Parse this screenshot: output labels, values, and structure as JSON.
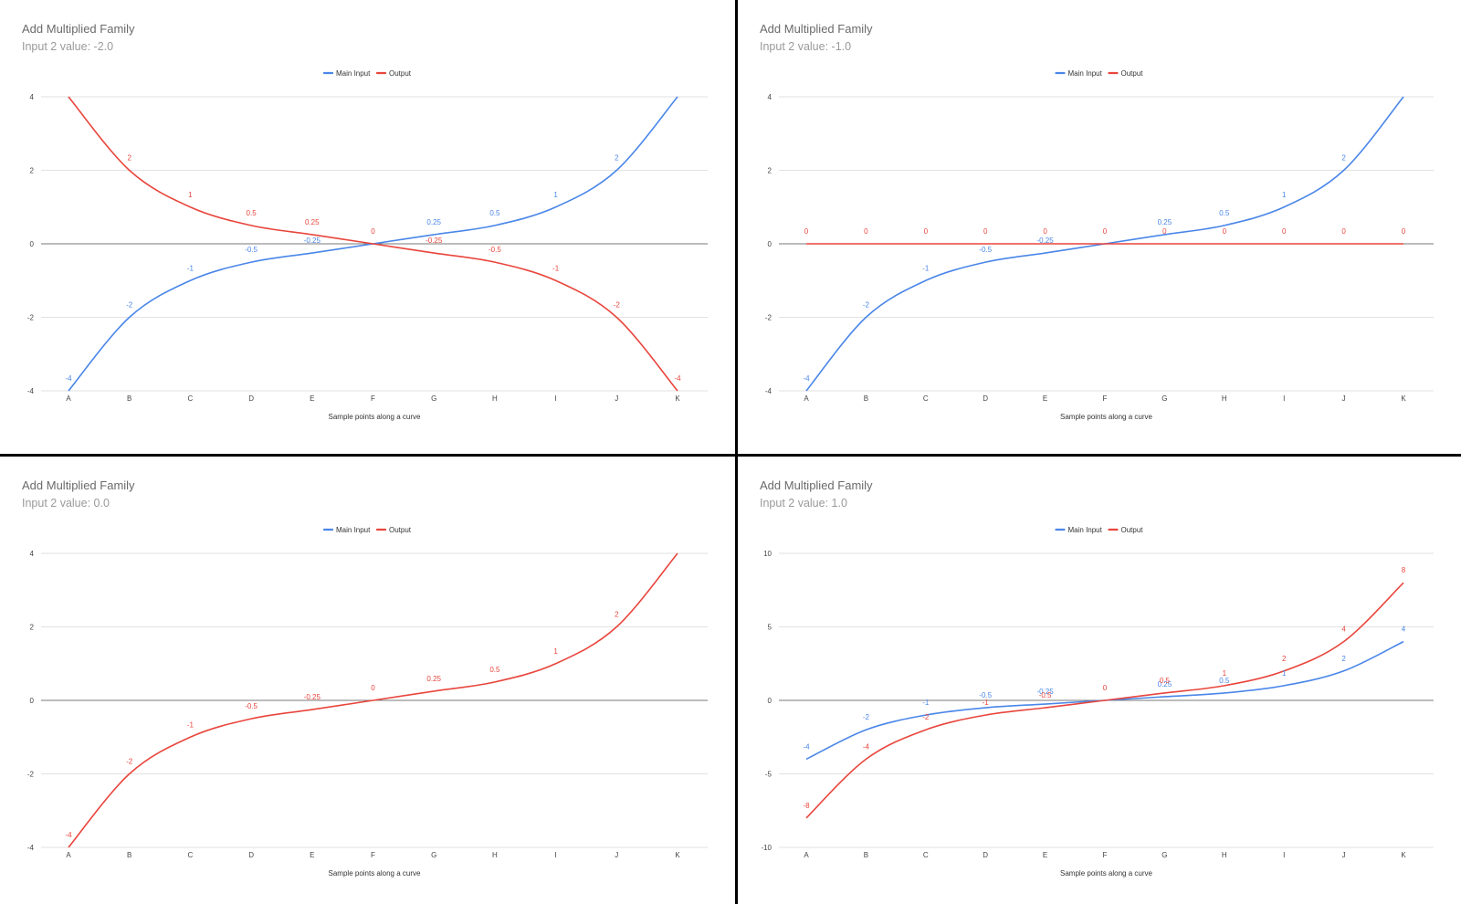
{
  "colors": {
    "main_input": "#4a86e8",
    "output": "#e8453c",
    "grid": "#e2e2e2",
    "axis": "#7a7a7a"
  },
  "chart_data": [
    {
      "type": "line",
      "title": "Add Multiplied Family",
      "subtitle": "Input 2 value: -2.0",
      "xlabel": "Sample points along a curve",
      "ylabel": "",
      "categories": [
        "A",
        "B",
        "C",
        "D",
        "E",
        "F",
        "G",
        "H",
        "I",
        "J",
        "K"
      ],
      "ylim": [
        -4,
        4
      ],
      "yticks": [
        4,
        2,
        0,
        -2,
        -4
      ],
      "legend": "top",
      "grid": true,
      "series": [
        {
          "name": "Main Input",
          "values": [
            -4,
            -2,
            -1,
            -0.5,
            -0.25,
            0,
            0.25,
            0.5,
            1,
            2,
            4
          ],
          "labels": [
            "-4",
            "-2",
            "-1",
            "-0.5",
            "-0.25",
            "",
            "0.25",
            "0.5",
            "1",
            "2",
            ""
          ]
        },
        {
          "name": "Output",
          "values": [
            4,
            2,
            1,
            0.5,
            0.25,
            0,
            -0.25,
            -0.5,
            -1,
            -2,
            -4
          ],
          "labels": [
            "",
            "2",
            "1",
            "0.5",
            "0.25",
            "0",
            "-0.25",
            "-0.5",
            "-1",
            "-2",
            "-4"
          ]
        }
      ]
    },
    {
      "type": "line",
      "title": "Add Multiplied Family",
      "subtitle": "Input 2 value: -1.0",
      "xlabel": "Sample points along a curve",
      "ylabel": "",
      "categories": [
        "A",
        "B",
        "C",
        "D",
        "E",
        "F",
        "G",
        "H",
        "I",
        "J",
        "K"
      ],
      "ylim": [
        -4,
        4
      ],
      "yticks": [
        4,
        2,
        0,
        -2,
        -4
      ],
      "legend": "top",
      "grid": true,
      "series": [
        {
          "name": "Main Input",
          "values": [
            -4,
            -2,
            -1,
            -0.5,
            -0.25,
            0,
            0.25,
            0.5,
            1,
            2,
            4
          ],
          "labels": [
            "-4",
            "-2",
            "-1",
            "-0.5",
            "-0.25",
            "",
            "0.25",
            "0.5",
            "1",
            "2",
            ""
          ]
        },
        {
          "name": "Output",
          "values": [
            0,
            0,
            0,
            0,
            0,
            0,
            0,
            0,
            0,
            0,
            0
          ],
          "labels": [
            "0",
            "0",
            "0",
            "0",
            "0",
            "0",
            "0",
            "0",
            "0",
            "0",
            "0"
          ]
        }
      ]
    },
    {
      "type": "line",
      "title": "Add Multiplied Family",
      "subtitle": "Input 2 value: 0.0",
      "xlabel": "Sample points along a curve",
      "ylabel": "",
      "categories": [
        "A",
        "B",
        "C",
        "D",
        "E",
        "F",
        "G",
        "H",
        "I",
        "J",
        "K"
      ],
      "ylim": [
        -4,
        4
      ],
      "yticks": [
        4,
        2,
        0,
        -2,
        -4
      ],
      "legend": "top",
      "grid": true,
      "series": [
        {
          "name": "Main Input",
          "values": [
            -4,
            -2,
            -1,
            -0.5,
            -0.25,
            0,
            0.25,
            0.5,
            1,
            2,
            4
          ],
          "labels": [
            "",
            "",
            "",
            "",
            "",
            "",
            "",
            "",
            "",
            "",
            ""
          ]
        },
        {
          "name": "Output",
          "values": [
            -4,
            -2,
            -1,
            -0.5,
            -0.25,
            0,
            0.25,
            0.5,
            1,
            2,
            4
          ],
          "labels": [
            "-4",
            "-2",
            "-1",
            "-0.5",
            "-0.25",
            "0",
            "0.25",
            "0.5",
            "1",
            "2",
            ""
          ]
        }
      ]
    },
    {
      "type": "line",
      "title": "Add Multiplied Family",
      "subtitle": "Input 2 value: 1.0",
      "xlabel": "Sample points along a curve",
      "ylabel": "",
      "categories": [
        "A",
        "B",
        "C",
        "D",
        "E",
        "F",
        "G",
        "H",
        "I",
        "J",
        "K"
      ],
      "ylim": [
        -10,
        10
      ],
      "yticks": [
        10,
        5,
        0,
        -5,
        -10
      ],
      "legend": "top",
      "grid": true,
      "series": [
        {
          "name": "Main Input",
          "values": [
            -4,
            -2,
            -1,
            -0.5,
            -0.25,
            0,
            0.25,
            0.5,
            1,
            2,
            4
          ],
          "labels": [
            "-4",
            "-2",
            "-1",
            "-0.5",
            "-0.25",
            "",
            "0.25",
            "0.5",
            "1",
            "2",
            "4"
          ]
        },
        {
          "name": "Output",
          "values": [
            -8,
            -4,
            -2,
            -1,
            -0.5,
            0,
            0.5,
            1,
            2,
            4,
            8
          ],
          "labels": [
            "-8",
            "-4",
            "-2",
            "-1",
            "-0.5",
            "0",
            "0.5",
            "1",
            "2",
            "4",
            "8"
          ]
        }
      ]
    }
  ]
}
